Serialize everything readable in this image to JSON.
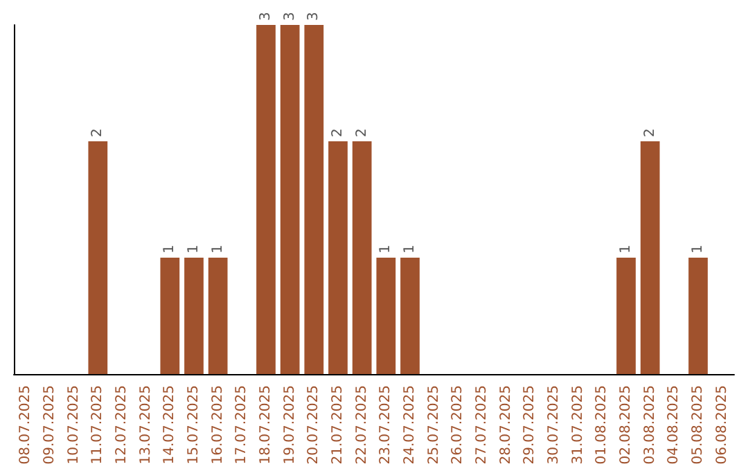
{
  "chart_data": {
    "type": "bar",
    "categories": [
      "08.07.2025",
      "09.07.2025",
      "10.07.2025",
      "11.07.2025",
      "12.07.2025",
      "13.07.2025",
      "14.07.2025",
      "15.07.2025",
      "16.07.2025",
      "17.07.2025",
      "18.07.2025",
      "19.07.2025",
      "20.07.2025",
      "21.07.2025",
      "22.07.2025",
      "23.07.2025",
      "24.07.2025",
      "25.07.2025",
      "26.07.2025",
      "27.07.2025",
      "28.07.2025",
      "29.07.2025",
      "30.07.2025",
      "31.07.2025",
      "01.08.2025",
      "02.08.2025",
      "03.08.2025",
      "04.08.2025",
      "05.08.2025",
      "06.08.2025"
    ],
    "values": [
      0,
      0,
      0,
      2,
      0,
      0,
      1,
      1,
      1,
      0,
      3,
      3,
      3,
      2,
      2,
      1,
      1,
      0,
      0,
      0,
      0,
      0,
      0,
      0,
      0,
      1,
      2,
      0,
      1,
      0
    ],
    "value_labels": [
      null,
      null,
      null,
      "2",
      null,
      null,
      "1",
      "1",
      "1",
      null,
      "3",
      "3",
      "3",
      "2",
      "2",
      "1",
      "1",
      null,
      null,
      null,
      null,
      null,
      null,
      null,
      null,
      "1",
      "2",
      null,
      "1",
      null
    ],
    "color": "#a0522d",
    "grid": false
  }
}
